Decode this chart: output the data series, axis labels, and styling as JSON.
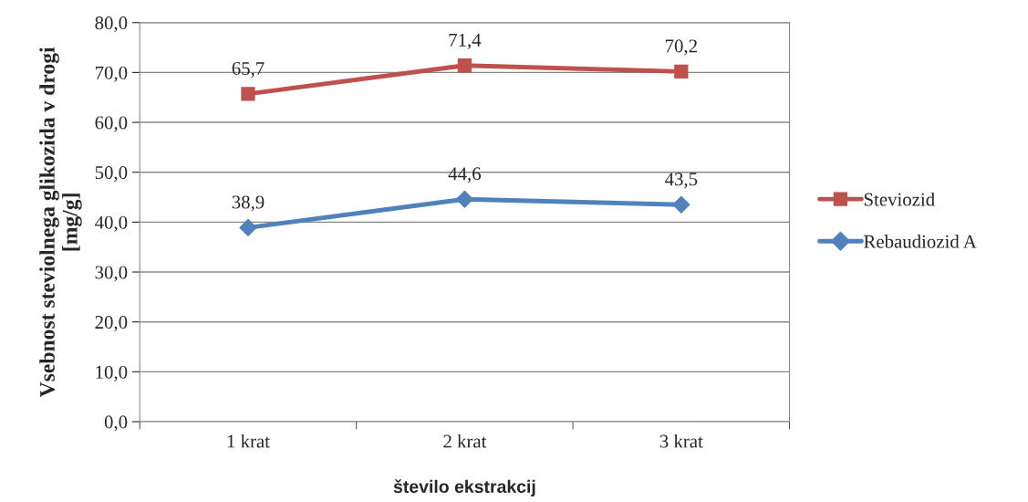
{
  "chart_data": {
    "type": "line",
    "xlabel": "število ekstrakcij",
    "ylabel": "Vsebnost steviolnega glikozida v drogi\n[mg/g]",
    "categories": [
      "1 krat",
      "2 krat",
      "3 krat"
    ],
    "series": [
      {
        "name": "Steviozid",
        "color": "#c0504d",
        "marker": "square",
        "values": [
          65.7,
          71.4,
          70.2
        ],
        "value_labels": [
          "65,7",
          "71,4",
          "70,2"
        ]
      },
      {
        "name": "Rebaudiozid A",
        "color": "#4f81bd",
        "marker": "diamond",
        "values": [
          38.9,
          44.6,
          43.5
        ],
        "value_labels": [
          "38,9",
          "44,6",
          "43,5"
        ]
      }
    ],
    "ylim": [
      0,
      80
    ],
    "yticks": [
      {
        "value": 0,
        "label": "0,0"
      },
      {
        "value": 10,
        "label": "10,0"
      },
      {
        "value": 20,
        "label": "20,0"
      },
      {
        "value": 30,
        "label": "30,0"
      },
      {
        "value": 40,
        "label": "40,0"
      },
      {
        "value": 50,
        "label": "50,0"
      },
      {
        "value": 60,
        "label": "60,0"
      },
      {
        "value": 70,
        "label": "70,0"
      },
      {
        "value": 80,
        "label": "80,0"
      }
    ],
    "grid": "y",
    "legend": "right",
    "line_style": "solid"
  }
}
